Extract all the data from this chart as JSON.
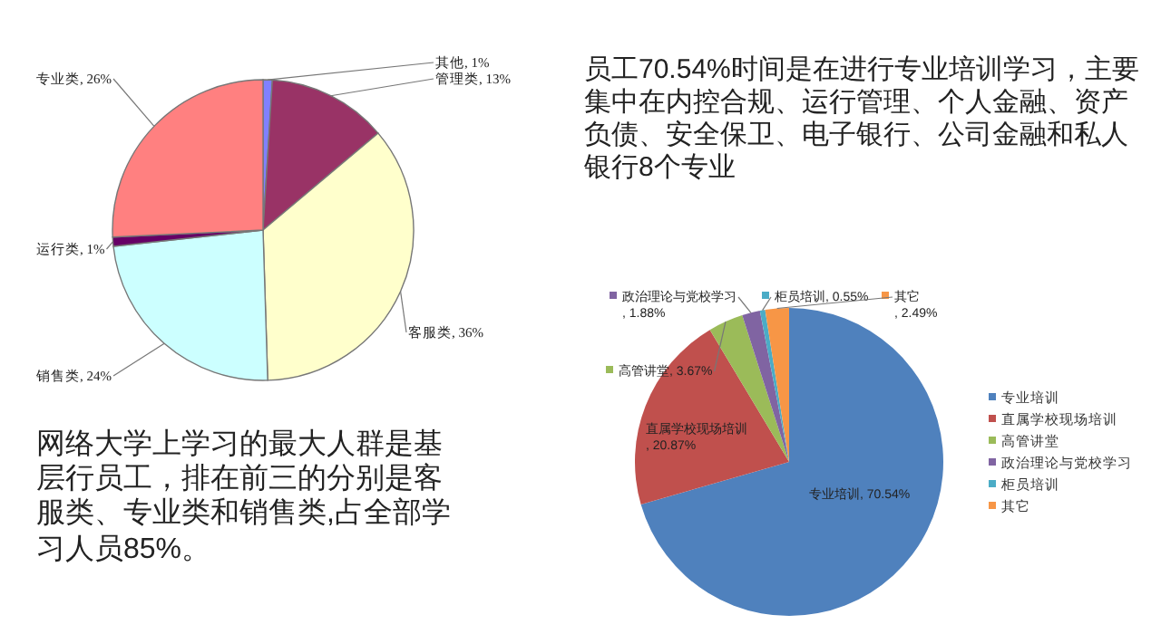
{
  "chart_data": [
    {
      "type": "pie",
      "categories": [
        "其他",
        "管理类",
        "客服类",
        "销售类",
        "运行类",
        "专业类"
      ],
      "values": [
        1,
        13,
        36,
        24,
        1,
        26
      ],
      "colors": [
        "#8080ff",
        "#993366",
        "#ffffcc",
        "#ccffff",
        "#660066",
        "#ff8080"
      ],
      "value_labels": [
        ", 1%",
        ", 13%",
        ", 36%",
        ", 24%",
        ", 1%",
        ", 26%"
      ],
      "annotations": [
        "网络大学上学习的最大人群是基层行员工，排在前三的分别是客服类、专业类和销售类,占全部学习人员85%。"
      ]
    },
    {
      "type": "pie",
      "categories": [
        "专业培训",
        "直属学校现场培训",
        "高管讲堂",
        "政治理论与党校学习",
        "柜员培训",
        "其它"
      ],
      "values": [
        70.54,
        20.87,
        3.67,
        1.88,
        0.55,
        2.49
      ],
      "colors": [
        "#4f81bd",
        "#c0504d",
        "#9bbb59",
        "#8064a2",
        "#4bacc6",
        "#f79646"
      ],
      "value_labels": [
        ", 70.54%",
        ", 20.87%",
        ", 3.67%",
        ", 1.88%",
        ", 0.55%",
        ", 2.49%"
      ],
      "legend": "right",
      "annotations": [
        "员工70.54%时间是在进行专业培训学习，主要集中在内控合规、运行管理、个人金融、资产负债、安全保卫、电子银行、公司金融和私人银行8个专业"
      ]
    }
  ]
}
